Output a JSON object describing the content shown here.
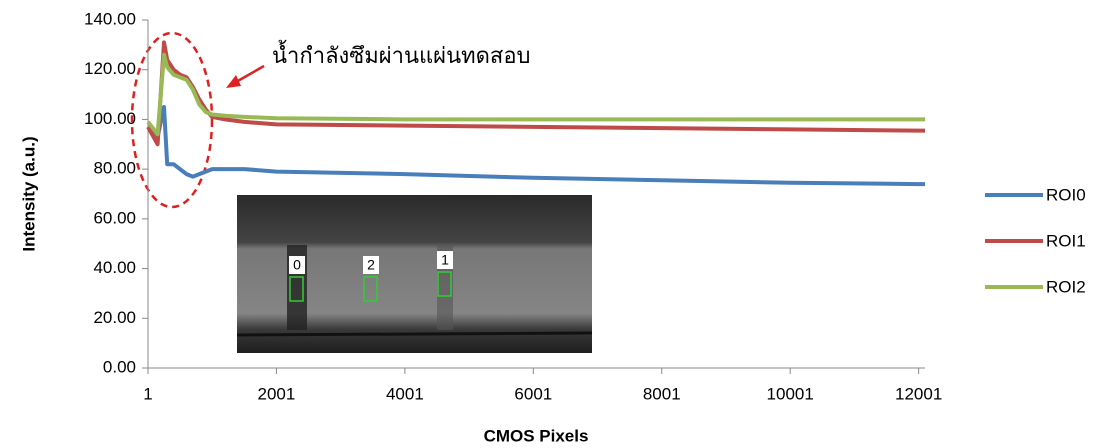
{
  "chart_data": {
    "type": "line",
    "x_label": "CMOS Pixels",
    "y_label": "Intensity (a.u.)",
    "annotation": "น้ำกำลังซึมผ่านแผ่นทดสอบ",
    "inset_labels": [
      "0",
      "2",
      "1"
    ],
    "xlim": [
      1,
      12100
    ],
    "xticks": [
      1,
      2001,
      4001,
      6001,
      8001,
      10001,
      12001
    ],
    "ylim": [
      0,
      140
    ],
    "yticks": [
      {
        "value": 0,
        "label": "0.00"
      },
      {
        "value": 20,
        "label": "20.00"
      },
      {
        "value": 40,
        "label": "40.00"
      },
      {
        "value": 60,
        "label": "60.00"
      },
      {
        "value": 80,
        "label": "80.00"
      },
      {
        "value": 100,
        "label": "100.00"
      },
      {
        "value": 120,
        "label": "120.00"
      },
      {
        "value": 140,
        "label": "140.00"
      }
    ],
    "grid": false,
    "legend": "right",
    "x": [
      1,
      150,
      250,
      300,
      400,
      500,
      600,
      700,
      800,
      900,
      1000,
      1200,
      1500,
      2001,
      4001,
      6001,
      8001,
      10001,
      12001,
      12100
    ],
    "series": [
      {
        "name": "ROI0",
        "color": "#4a7ebb",
        "values": [
          97,
          93,
          105,
          82,
          82,
          80,
          78,
          77,
          78,
          79,
          80,
          80,
          80,
          79,
          78,
          76.5,
          75.5,
          74.5,
          74,
          74
        ]
      },
      {
        "name": "ROI1",
        "color": "#be4b48",
        "values": [
          97,
          90,
          131,
          124,
          120,
          118,
          117,
          113,
          108,
          104,
          101,
          100,
          99,
          98,
          97.5,
          97,
          96.5,
          96,
          95.5,
          95.5
        ]
      },
      {
        "name": "ROI2",
        "color": "#98b954",
        "values": [
          99,
          94,
          126,
          121,
          118,
          117,
          116,
          112,
          106,
          103,
          102,
          101.5,
          101,
          100.5,
          100,
          100,
          100,
          100,
          100,
          100
        ]
      }
    ]
  }
}
